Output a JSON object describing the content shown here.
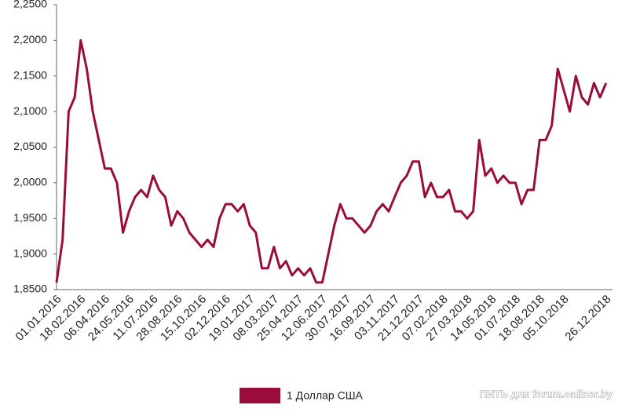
{
  "chart_data": {
    "type": "line",
    "categories": [
      "01.01.2016",
      null,
      null,
      null,
      "18.02.2016",
      null,
      null,
      null,
      "06.04.2016",
      null,
      null,
      null,
      "24.05.2016",
      null,
      null,
      null,
      "11.07.2016",
      null,
      null,
      null,
      "28.08.2016",
      null,
      null,
      null,
      "15.10.2016",
      null,
      null,
      null,
      "02.12.2016",
      null,
      null,
      null,
      "19.01.2017",
      null,
      null,
      null,
      "08.03.2017",
      null,
      null,
      null,
      "25.04.2017",
      null,
      null,
      null,
      "12.06.2017",
      null,
      null,
      null,
      "30.07.2017",
      null,
      null,
      null,
      "16.09.2017",
      null,
      null,
      null,
      "03.11.2017",
      null,
      null,
      null,
      "21.12.2017",
      null,
      null,
      null,
      "07.02.2018",
      null,
      null,
      null,
      "27.03.2018",
      null,
      null,
      null,
      "14.05.2018",
      null,
      null,
      null,
      "01.07.2018",
      null,
      null,
      null,
      "18.08.2018",
      null,
      null,
      null,
      "05.10.2018",
      null,
      null,
      null,
      null,
      null,
      null,
      "26.12.2018"
    ],
    "series": [
      {
        "name": "1 Доллар США",
        "color": "#9b0c3e",
        "values": [
          1.86,
          1.92,
          2.1,
          2.12,
          2.2,
          2.16,
          2.1,
          2.06,
          2.02,
          2.02,
          2.0,
          1.93,
          1.96,
          1.98,
          1.99,
          1.98,
          2.01,
          1.99,
          1.98,
          1.94,
          1.96,
          1.95,
          1.93,
          1.92,
          1.91,
          1.92,
          1.91,
          1.95,
          1.97,
          1.97,
          1.96,
          1.97,
          1.94,
          1.93,
          1.88,
          1.88,
          1.91,
          1.88,
          1.89,
          1.87,
          1.88,
          1.87,
          1.88,
          1.86,
          1.86,
          1.9,
          1.94,
          1.97,
          1.95,
          1.95,
          1.94,
          1.93,
          1.94,
          1.96,
          1.97,
          1.96,
          1.98,
          2.0,
          2.01,
          2.03,
          2.03,
          1.98,
          2.0,
          1.98,
          1.98,
          1.99,
          1.96,
          1.96,
          1.95,
          1.96,
          2.06,
          2.01,
          2.02,
          2.0,
          2.01,
          2.0,
          2.0,
          1.97,
          1.99,
          1.99,
          2.06,
          2.06,
          2.08,
          2.16,
          2.13,
          2.1,
          2.15,
          2.12,
          2.11,
          2.14,
          2.12,
          2.14
        ]
      }
    ],
    "ylim": [
      1.85,
      2.25
    ],
    "yticks": [
      {
        "value": 1.85,
        "label": "1,8500"
      },
      {
        "value": 1.9,
        "label": "1,9000"
      },
      {
        "value": 1.95,
        "label": "1,9500"
      },
      {
        "value": 2.0,
        "label": "2,0000"
      },
      {
        "value": 2.05,
        "label": "2,0500"
      },
      {
        "value": 2.1,
        "label": "2,1000"
      },
      {
        "value": 2.15,
        "label": "2,1500"
      },
      {
        "value": 2.2,
        "label": "2,2000"
      },
      {
        "value": 2.25,
        "label": "2,2500"
      }
    ],
    "grid": false,
    "watermark": "ПИТЬ для forum.onliner.by"
  }
}
